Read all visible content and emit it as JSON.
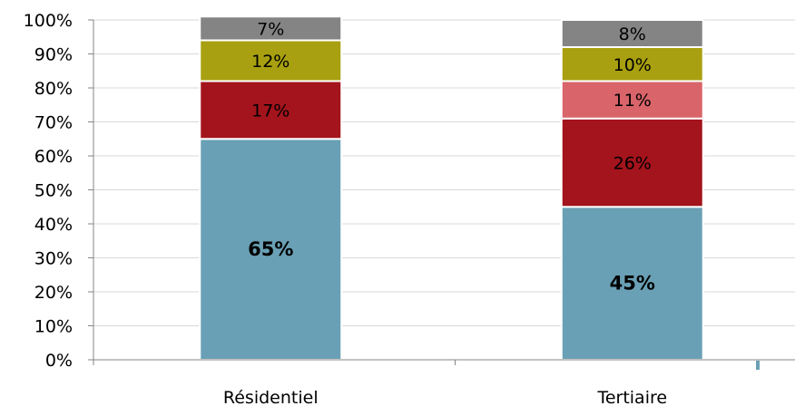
{
  "chart_data": {
    "type": "bar",
    "stacked": true,
    "categories": [
      "Résidentiel",
      "Tertiaire"
    ],
    "series": [
      {
        "color": "#6aa0b5",
        "values": [
          65,
          45
        ],
        "labels": [
          "65%",
          "45%"
        ],
        "bold": true
      },
      {
        "color": "#a3141c",
        "values": [
          17,
          26
        ],
        "labels": [
          "17%",
          "26%"
        ]
      },
      {
        "color": "#d9646a",
        "values": [
          0,
          11
        ],
        "labels": [
          "",
          "11%"
        ]
      },
      {
        "color": "#a8a010",
        "values": [
          12,
          10
        ],
        "labels": [
          "12%",
          "10%"
        ]
      },
      {
        "color": "#848484",
        "values": [
          7,
          8
        ],
        "labels": [
          "7%",
          "8%"
        ]
      }
    ],
    "ylim": [
      0,
      100
    ],
    "yticks": [
      "0%",
      "10%",
      "20%",
      "30%",
      "40%",
      "50%",
      "60%",
      "70%",
      "80%",
      "90%",
      "100%"
    ],
    "grid": true,
    "legend": "none",
    "colors": {
      "grid": "#d9d9d9",
      "axis": "#868686"
    }
  }
}
